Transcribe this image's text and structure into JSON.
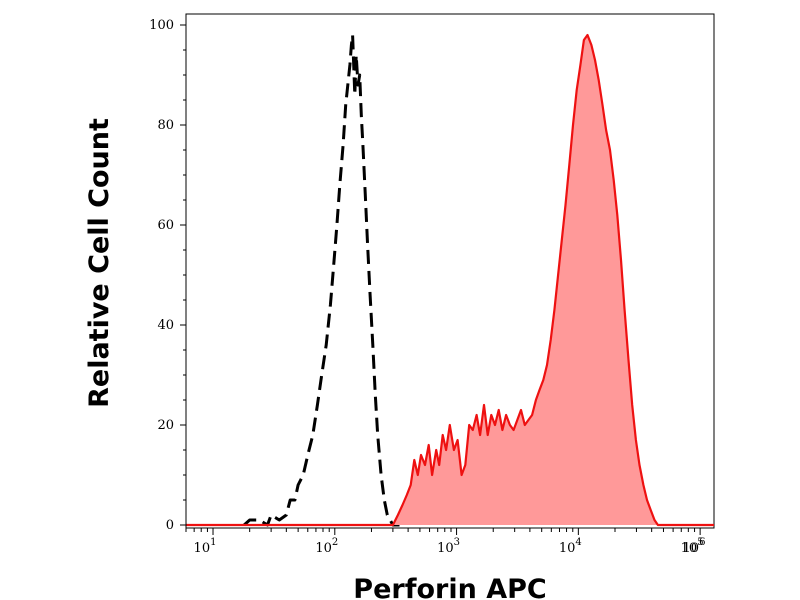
{
  "chart_data": {
    "type": "area",
    "title": "",
    "xlabel": "Perforin APC",
    "ylabel": "Relative Cell Count",
    "x_scale": "log",
    "xlim": [
      6,
      130000
    ],
    "ylim": [
      0,
      100
    ],
    "grid": false,
    "legend": "none",
    "x_ticks": [
      {
        "base": "10",
        "exp": "1",
        "value": 10
      },
      {
        "base": "10",
        "exp": "2",
        "value": 100
      },
      {
        "base": "10",
        "exp": "3",
        "value": 1000
      },
      {
        "base": "10",
        "exp": "4",
        "value": 10000
      },
      {
        "base": "10",
        "exp": "5",
        "value": 100000
      },
      {
        "base": "10",
        "exp": "6",
        "value": 1000000
      }
    ],
    "y_ticks": [
      {
        "label": "0",
        "value": 0
      },
      {
        "label": "20",
        "value": 20
      },
      {
        "label": "40",
        "value": 40
      },
      {
        "label": "60",
        "value": 60
      },
      {
        "label": "80",
        "value": 80
      },
      {
        "label": "100",
        "value": 100
      }
    ],
    "series": [
      {
        "style": "dashed",
        "color": "#000000",
        "fill": "none",
        "points": [
          [
            18,
            0
          ],
          [
            20,
            1
          ],
          [
            24,
            1
          ],
          [
            28,
            0
          ],
          [
            30,
            2
          ],
          [
            35,
            1
          ],
          [
            40,
            2
          ],
          [
            43,
            5
          ],
          [
            47,
            5
          ],
          [
            50,
            8
          ],
          [
            55,
            10
          ],
          [
            60,
            14
          ],
          [
            66,
            18
          ],
          [
            72,
            24
          ],
          [
            78,
            30
          ],
          [
            85,
            36
          ],
          [
            92,
            44
          ],
          [
            98,
            52
          ],
          [
            104,
            60
          ],
          [
            110,
            68
          ],
          [
            117,
            76
          ],
          [
            123,
            84
          ],
          [
            128,
            88
          ],
          [
            133,
            92
          ],
          [
            137,
            96
          ],
          [
            140,
            98
          ],
          [
            143,
            92
          ],
          [
            146,
            86
          ],
          [
            150,
            94
          ],
          [
            155,
            88
          ],
          [
            160,
            90
          ],
          [
            165,
            82
          ],
          [
            170,
            76
          ],
          [
            178,
            66
          ],
          [
            186,
            56
          ],
          [
            195,
            46
          ],
          [
            205,
            36
          ],
          [
            215,
            26
          ],
          [
            225,
            18
          ],
          [
            240,
            10
          ],
          [
            255,
            5
          ],
          [
            270,
            2
          ],
          [
            300,
            0
          ],
          [
            340,
            0
          ]
        ]
      },
      {
        "style": "solid",
        "color": "#ee1111",
        "fill": "#ff9999",
        "points": [
          [
            6,
            0
          ],
          [
            300,
            0
          ],
          [
            330,
            2
          ],
          [
            360,
            4
          ],
          [
            390,
            6
          ],
          [
            420,
            8
          ],
          [
            450,
            13
          ],
          [
            480,
            10
          ],
          [
            510,
            14
          ],
          [
            550,
            12
          ],
          [
            590,
            16
          ],
          [
            630,
            10
          ],
          [
            680,
            15
          ],
          [
            720,
            12
          ],
          [
            770,
            18
          ],
          [
            820,
            15
          ],
          [
            880,
            20
          ],
          [
            950,
            15
          ],
          [
            1020,
            17
          ],
          [
            1100,
            10
          ],
          [
            1180,
            12
          ],
          [
            1270,
            20
          ],
          [
            1360,
            19
          ],
          [
            1460,
            22
          ],
          [
            1560,
            18
          ],
          [
            1680,
            24
          ],
          [
            1800,
            18
          ],
          [
            1930,
            22
          ],
          [
            2070,
            20
          ],
          [
            2220,
            23
          ],
          [
            2380,
            19
          ],
          [
            2550,
            22
          ],
          [
            2740,
            20
          ],
          [
            2940,
            19
          ],
          [
            3150,
            21
          ],
          [
            3380,
            23
          ],
          [
            3630,
            20
          ],
          [
            3890,
            21
          ],
          [
            4170,
            22
          ],
          [
            4480,
            25
          ],
          [
            4800,
            27
          ],
          [
            5150,
            29
          ],
          [
            5530,
            32
          ],
          [
            5930,
            37
          ],
          [
            6360,
            43
          ],
          [
            6820,
            50
          ],
          [
            7320,
            57
          ],
          [
            7850,
            64
          ],
          [
            8420,
            72
          ],
          [
            9030,
            80
          ],
          [
            9690,
            87
          ],
          [
            10400,
            92
          ],
          [
            11100,
            97
          ],
          [
            11900,
            98
          ],
          [
            12800,
            96
          ],
          [
            13700,
            93
          ],
          [
            14700,
            89
          ],
          [
            15800,
            84
          ],
          [
            16900,
            79
          ],
          [
            18200,
            75
          ],
          [
            19500,
            69
          ],
          [
            20900,
            62
          ],
          [
            22400,
            53
          ],
          [
            24000,
            43
          ],
          [
            25800,
            33
          ],
          [
            27700,
            24
          ],
          [
            29700,
            17
          ],
          [
            31800,
            12
          ],
          [
            34200,
            8
          ],
          [
            36600,
            5
          ],
          [
            39300,
            3
          ],
          [
            42200,
            1
          ],
          [
            45000,
            0
          ],
          [
            130000,
            0
          ]
        ]
      }
    ]
  }
}
